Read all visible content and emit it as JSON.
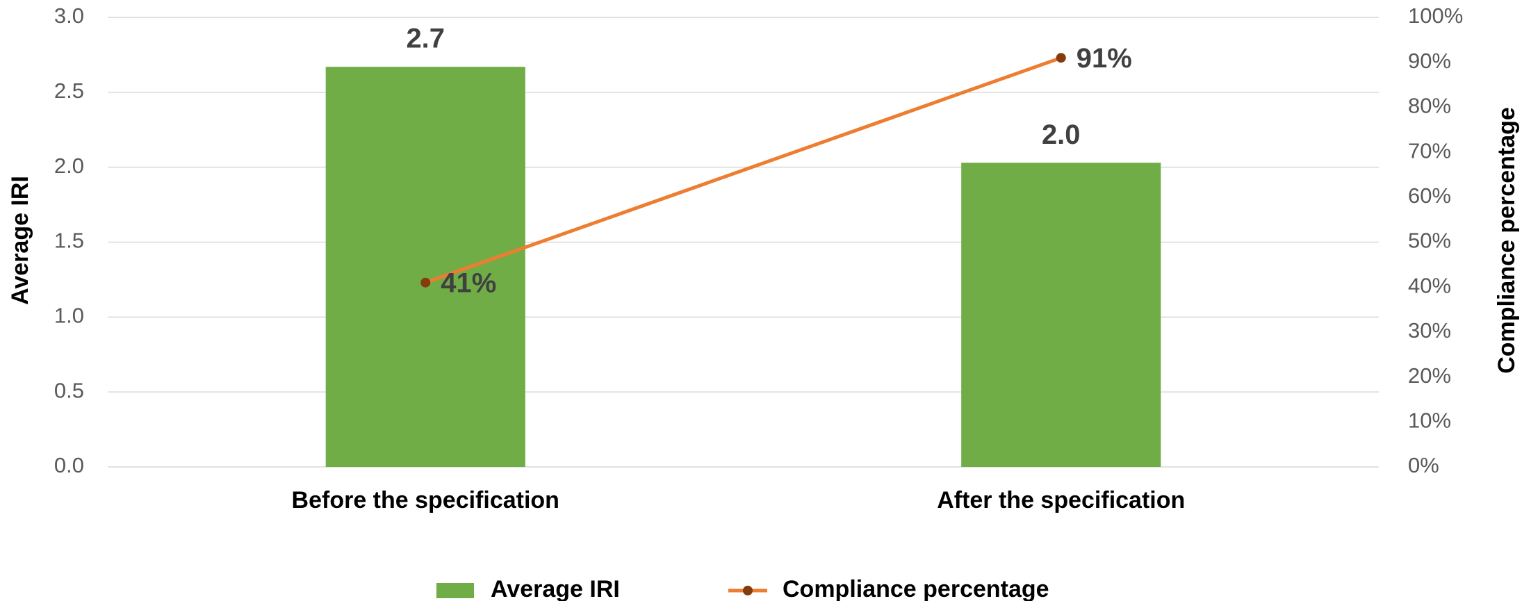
{
  "chart_data": {
    "type": "bar",
    "categories": [
      "Before the specification",
      "After the specification"
    ],
    "series": [
      {
        "name": "Average IRI",
        "type": "bar",
        "color": "#70ad47",
        "values": [
          2.67,
          2.03
        ],
        "value_labels": [
          "2.7",
          "2.0"
        ]
      },
      {
        "name": "Compliance percentage",
        "type": "line",
        "axis": "y2",
        "color": "#ed7d31",
        "marker_color": "#843c0c",
        "values": [
          41,
          91
        ],
        "value_labels": [
          "41%",
          "91%"
        ]
      }
    ],
    "y_label": "Average IRI",
    "y2_label": "Compliance percentage",
    "ylim": [
      0,
      3
    ],
    "yticks": [
      {
        "value": 0,
        "label": "0.0"
      },
      {
        "value": 0.5,
        "label": "0.5"
      },
      {
        "value": 1,
        "label": "1.0"
      },
      {
        "value": 1.5,
        "label": "1.5"
      },
      {
        "value": 2,
        "label": "2.0"
      },
      {
        "value": 2.5,
        "label": "2.5"
      },
      {
        "value": 3,
        "label": "3.0"
      }
    ],
    "y2lim": [
      0,
      100
    ],
    "y2ticks": [
      {
        "value": 0,
        "label": "0%"
      },
      {
        "value": 10,
        "label": "10%"
      },
      {
        "value": 20,
        "label": "20%"
      },
      {
        "value": 30,
        "label": "30%"
      },
      {
        "value": 40,
        "label": "40%"
      },
      {
        "value": 50,
        "label": "50%"
      },
      {
        "value": 60,
        "label": "60%"
      },
      {
        "value": 70,
        "label": "70%"
      },
      {
        "value": 80,
        "label": "80%"
      },
      {
        "value": 90,
        "label": "90%"
      },
      {
        "value": 100,
        "label": "100%"
      }
    ],
    "grid": true,
    "legend": "bottom"
  }
}
